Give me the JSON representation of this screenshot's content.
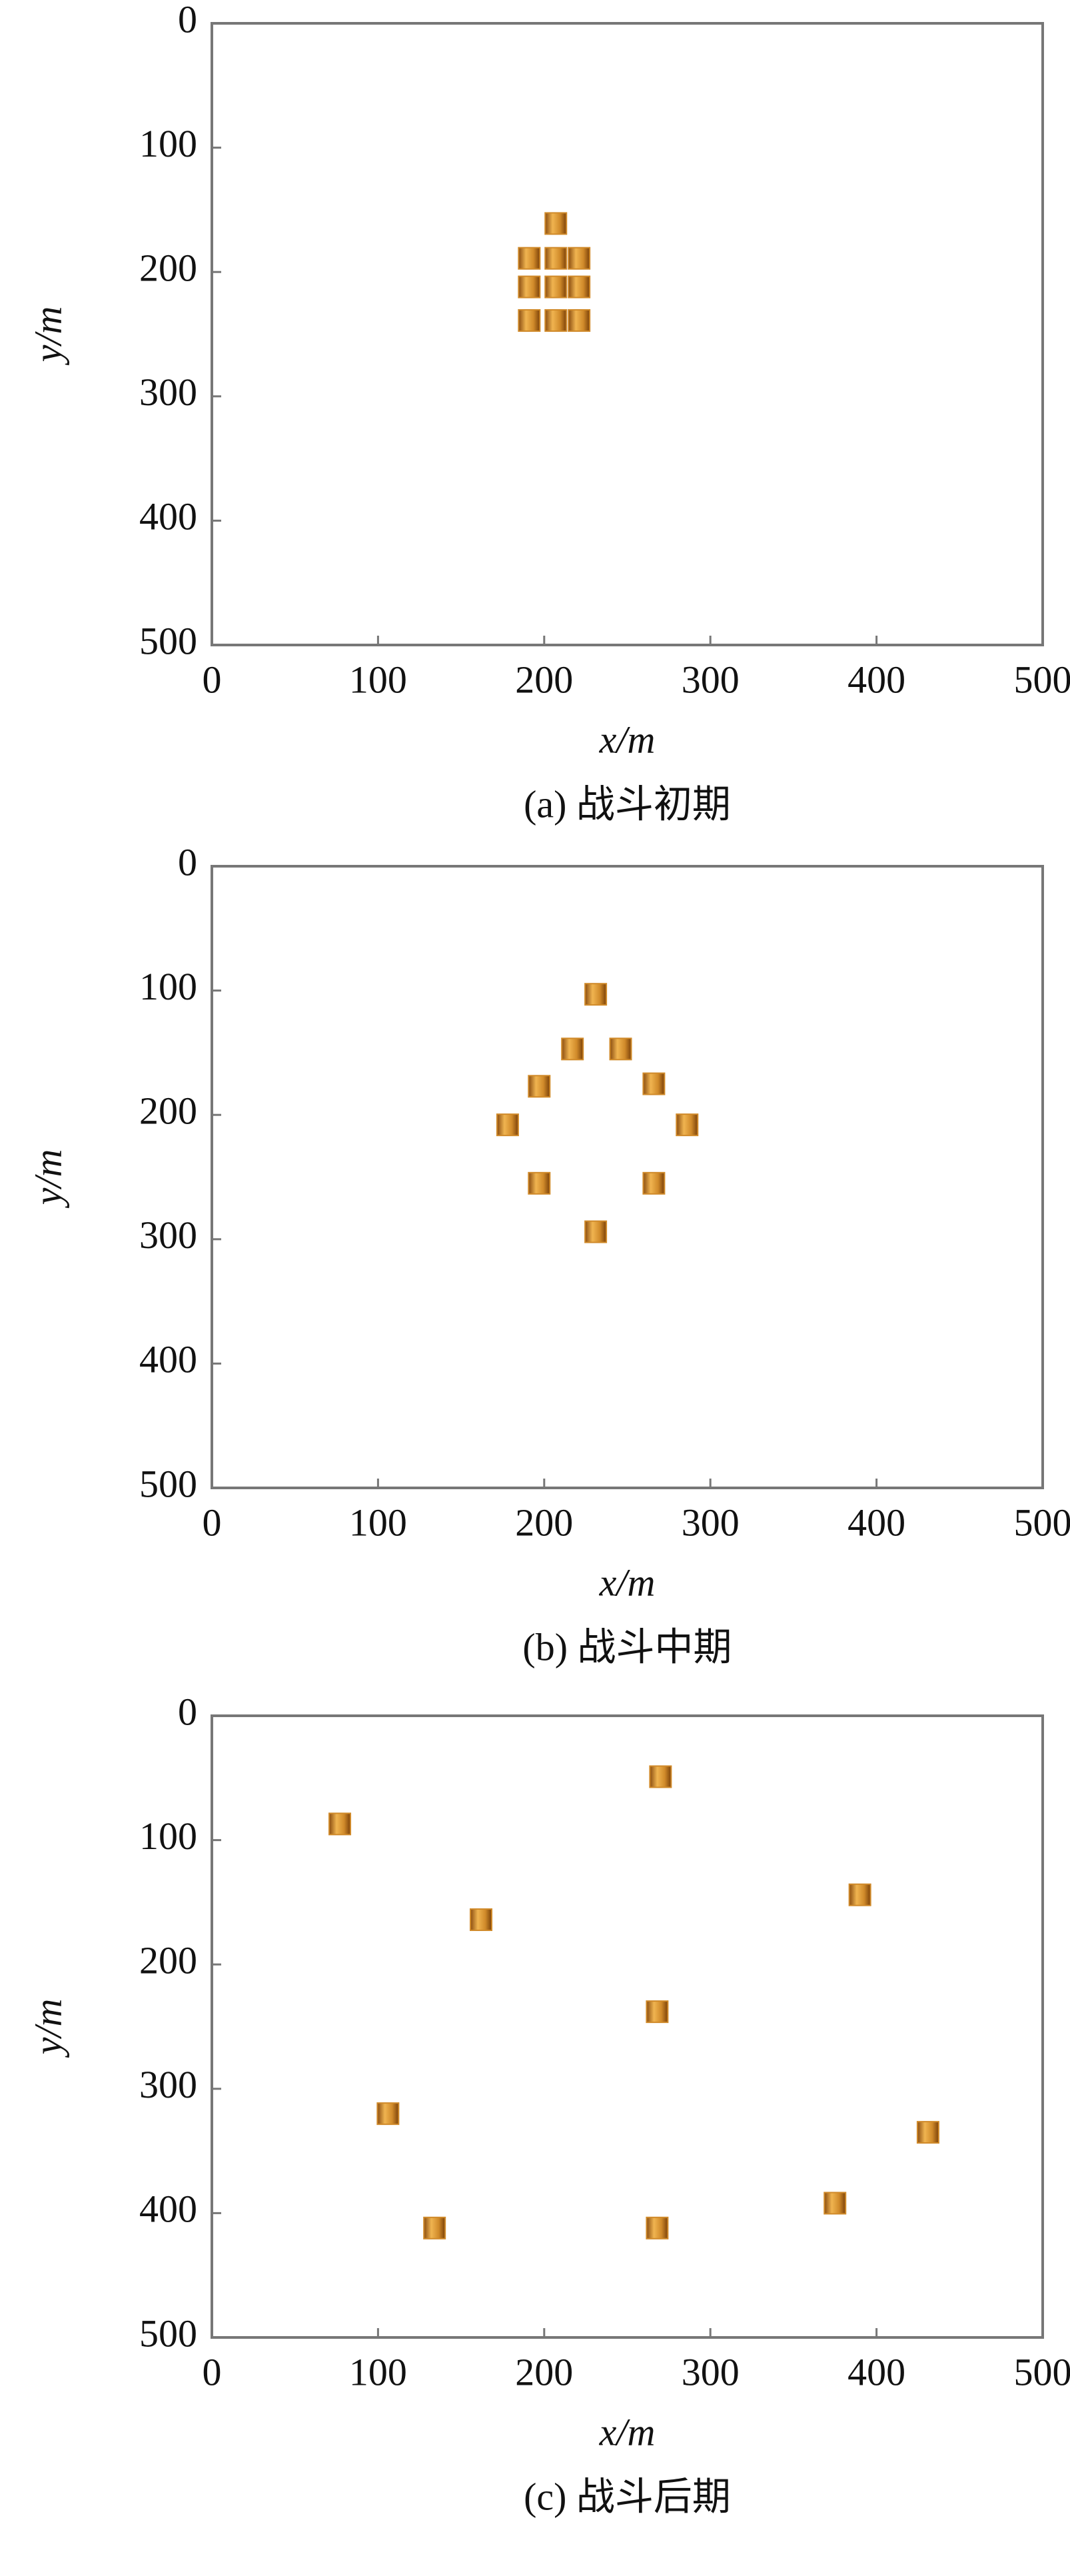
{
  "chart_data": [
    {
      "type": "scatter",
      "title": "(a) 战斗初期",
      "x_label": "x/m",
      "y_label": "y/m",
      "x": [
        207,
        191,
        207,
        221,
        191,
        207,
        221,
        191,
        207,
        221
      ],
      "y": [
        161,
        189,
        189,
        189,
        212,
        212,
        212,
        239,
        239,
        239
      ],
      "color": "#d08a2a",
      "xlim": [
        0,
        500
      ],
      "ylim": [
        0,
        500
      ],
      "y_inverted": true,
      "xticks": [
        0,
        100,
        200,
        300,
        400,
        500
      ],
      "yticks": [
        0,
        100,
        200,
        300,
        400,
        500
      ]
    },
    {
      "type": "scatter",
      "title": "(b) 战斗中期",
      "x_label": "x/m",
      "y_label": "y/m",
      "x": [
        231,
        217,
        246,
        197,
        266,
        178,
        286,
        197,
        266,
        231
      ],
      "y": [
        103,
        147,
        147,
        177,
        175,
        208,
        208,
        255,
        255,
        294
      ],
      "color": "#d08a2a",
      "xlim": [
        0,
        500
      ],
      "ylim": [
        0,
        500
      ],
      "y_inverted": true,
      "xticks": [
        0,
        100,
        200,
        300,
        400,
        500
      ],
      "yticks": [
        0,
        100,
        200,
        300,
        400,
        500
      ]
    },
    {
      "type": "scatter",
      "title": "(c) 战斗后期",
      "x_label": "x/m",
      "y_label": "y/m",
      "x": [
        270,
        77,
        390,
        162,
        268,
        106,
        431,
        375,
        134,
        268
      ],
      "y": [
        49,
        87,
        144,
        164,
        238,
        320,
        335,
        392,
        412,
        412
      ],
      "color": "#d08a2a",
      "xlim": [
        0,
        500
      ],
      "ylim": [
        0,
        500
      ],
      "y_inverted": true,
      "xticks": [
        0,
        100,
        200,
        300,
        400,
        500
      ],
      "yticks": [
        0,
        100,
        200,
        300,
        400,
        500
      ]
    }
  ]
}
